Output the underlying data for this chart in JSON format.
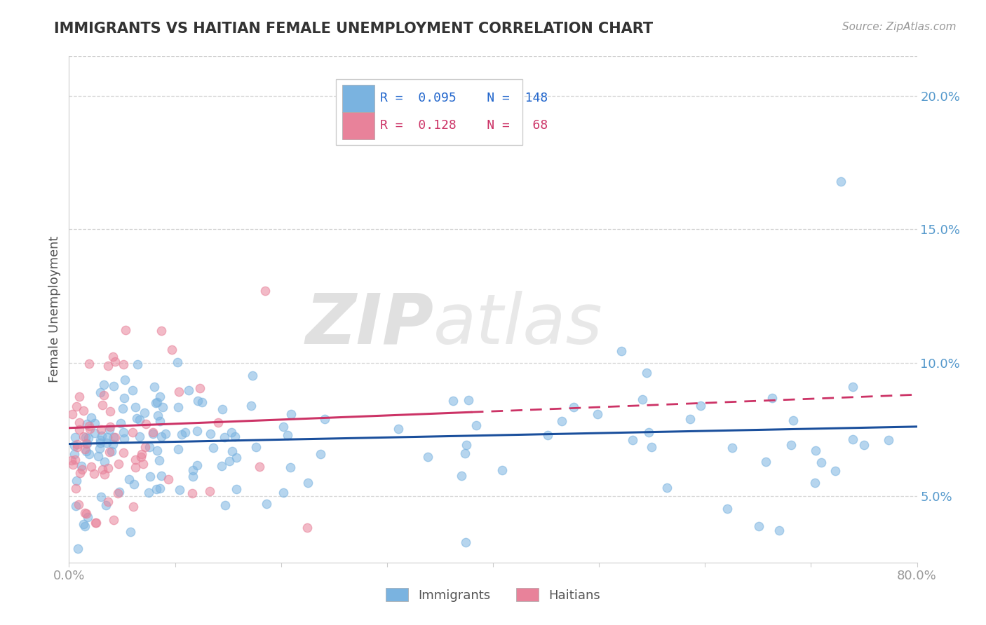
{
  "title": "IMMIGRANTS VS HAITIAN FEMALE UNEMPLOYMENT CORRELATION CHART",
  "source": "Source: ZipAtlas.com",
  "ylabel": "Female Unemployment",
  "xlim": [
    0.0,
    0.8
  ],
  "ylim": [
    0.025,
    0.215
  ],
  "immigrants_color": "#7ab3e0",
  "haitians_color": "#e8829a",
  "immigrants_line_color": "#1a4f9c",
  "haitians_line_color": "#cc3366",
  "immigrants_R": 0.095,
  "immigrants_N": 148,
  "haitians_R": 0.128,
  "haitians_N": 68,
  "watermark_zip": "ZIP",
  "watermark_atlas": "atlas",
  "legend_immigrants_label": "Immigrants",
  "legend_haitians_label": "Haitians",
  "background_color": "#ffffff",
  "grid_color": "#cccccc",
  "title_color": "#333333",
  "axis_label_color": "#555555",
  "tick_label_color": "#999999",
  "right_tick_color": "#5599cc",
  "ytick_positions": [
    0.05,
    0.1,
    0.15,
    0.2
  ],
  "ytick_labels": [
    "5.0%",
    "10.0%",
    "15.0%",
    "20.0%"
  ],
  "xtick_positions": [
    0.0,
    0.1,
    0.2,
    0.3,
    0.4,
    0.5,
    0.6,
    0.7,
    0.8
  ],
  "xtick_labels": [
    "0.0%",
    "",
    "",
    "",
    "",
    "",
    "",
    "",
    "80.0%"
  ]
}
